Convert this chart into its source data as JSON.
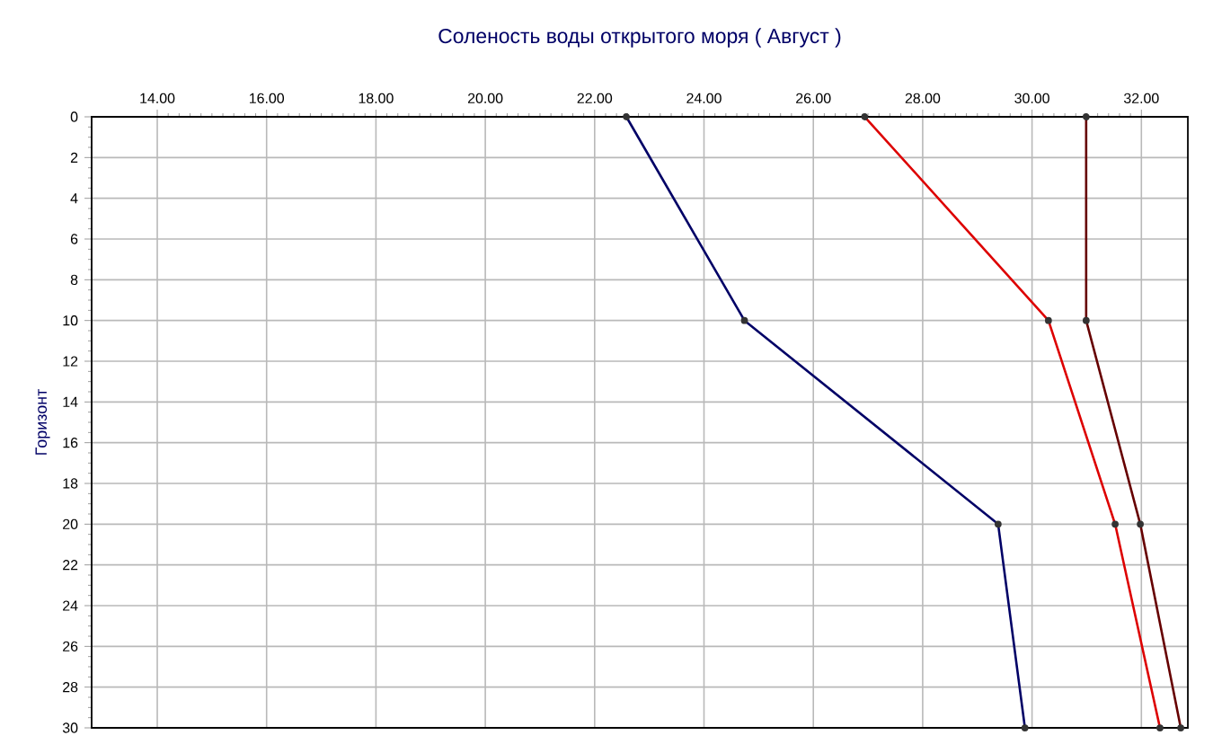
{
  "chart_data": {
    "type": "line",
    "title": "Соленость воды открытого моря    ( Август )",
    "ylabel": "Горизонт",
    "series": [
      {
        "color": "#000066",
        "x": [
          22.58,
          24.74,
          29.38,
          29.87
        ],
        "values": [
          0,
          10,
          20,
          30
        ]
      },
      {
        "color": "#dd0000",
        "x": [
          26.94,
          30.3,
          31.52,
          32.34
        ],
        "values": [
          0,
          10,
          20,
          30
        ]
      },
      {
        "color": "#660000",
        "x": [
          30.99,
          30.99,
          31.98,
          32.72
        ],
        "values": [
          0,
          10,
          20,
          30
        ]
      }
    ],
    "xlim": [
      12.8,
      32.85
    ],
    "ylim": [
      30,
      0
    ],
    "xticks": [
      {
        "value": 14,
        "label": "14.00"
      },
      {
        "value": 16,
        "label": "16.00"
      },
      {
        "value": 18,
        "label": "18.00"
      },
      {
        "value": 20,
        "label": "20.00"
      },
      {
        "value": 22,
        "label": "22.00"
      },
      {
        "value": 24,
        "label": "24.00"
      },
      {
        "value": 26,
        "label": "26.00"
      },
      {
        "value": 28,
        "label": "28.00"
      },
      {
        "value": 30,
        "label": "30.00"
      },
      {
        "value": 32,
        "label": "32.00"
      }
    ],
    "yticks": [
      0,
      2,
      4,
      6,
      8,
      10,
      12,
      14,
      16,
      18,
      20,
      22,
      24,
      26,
      28,
      30
    ],
    "grid": true,
    "marker": "circle",
    "line_style": "solid"
  }
}
